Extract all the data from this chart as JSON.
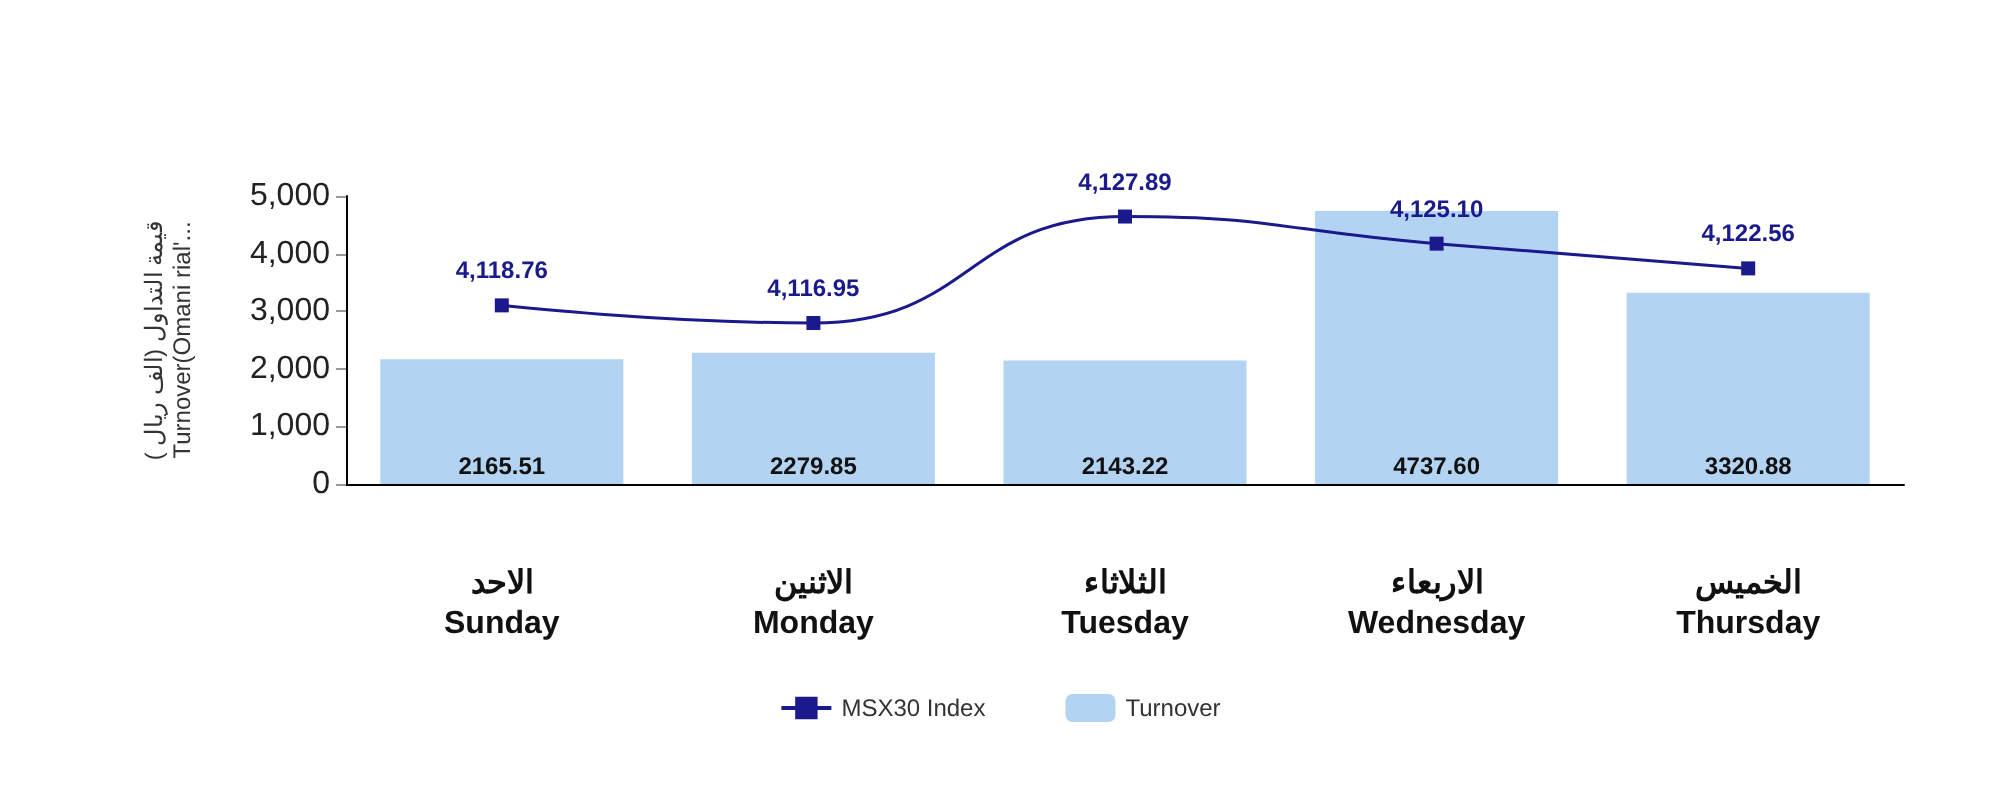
{
  "chart_data": {
    "type": "bar",
    "ylabel": "( قيمة التداول (الف ريال\nTurnover(Omani rial'...",
    "categories": [
      "الاحد\nSunday",
      "الاثنين\nMonday",
      "الثلاثاء\nTuesday",
      "الاربعاء\nWednesday",
      "الخميس\nThursday"
    ],
    "series": [
      {
        "name": "MSX30 Index",
        "type": "line",
        "axis": "y2",
        "color": "#1a1a8c",
        "values": [
          4118.76,
          4116.95,
          4127.89,
          4125.1,
          4122.56
        ],
        "value_labels": [
          "4,118.76",
          "4,116.95",
          "4,127.89",
          "4,125.10",
          "4,122.56"
        ]
      },
      {
        "name": "Turnover",
        "color": "#b3d3f2",
        "values": [
          2165.51,
          2279.85,
          2143.22,
          4737.6,
          3320.88
        ],
        "value_labels": [
          "2165.51",
          "2279.85",
          "2143.22",
          "4737.60",
          "3320.88"
        ]
      }
    ],
    "ylim": [
      0,
      5000
    ],
    "yticks": [
      0,
      {
        "value": 1000,
        "label": "1,000"
      },
      {
        "value": 2000,
        "label": "2,000"
      },
      {
        "value": 3000,
        "label": "3,000"
      },
      {
        "value": 4000,
        "label": "4,000"
      },
      {
        "value": 5000,
        "label": "5,000"
      }
    ],
    "y2lim": [
      4100.4,
      4130
    ],
    "tick_labels": "y",
    "grid": false,
    "legend": "bottom",
    "marker": "square",
    "line_style": "solid"
  }
}
